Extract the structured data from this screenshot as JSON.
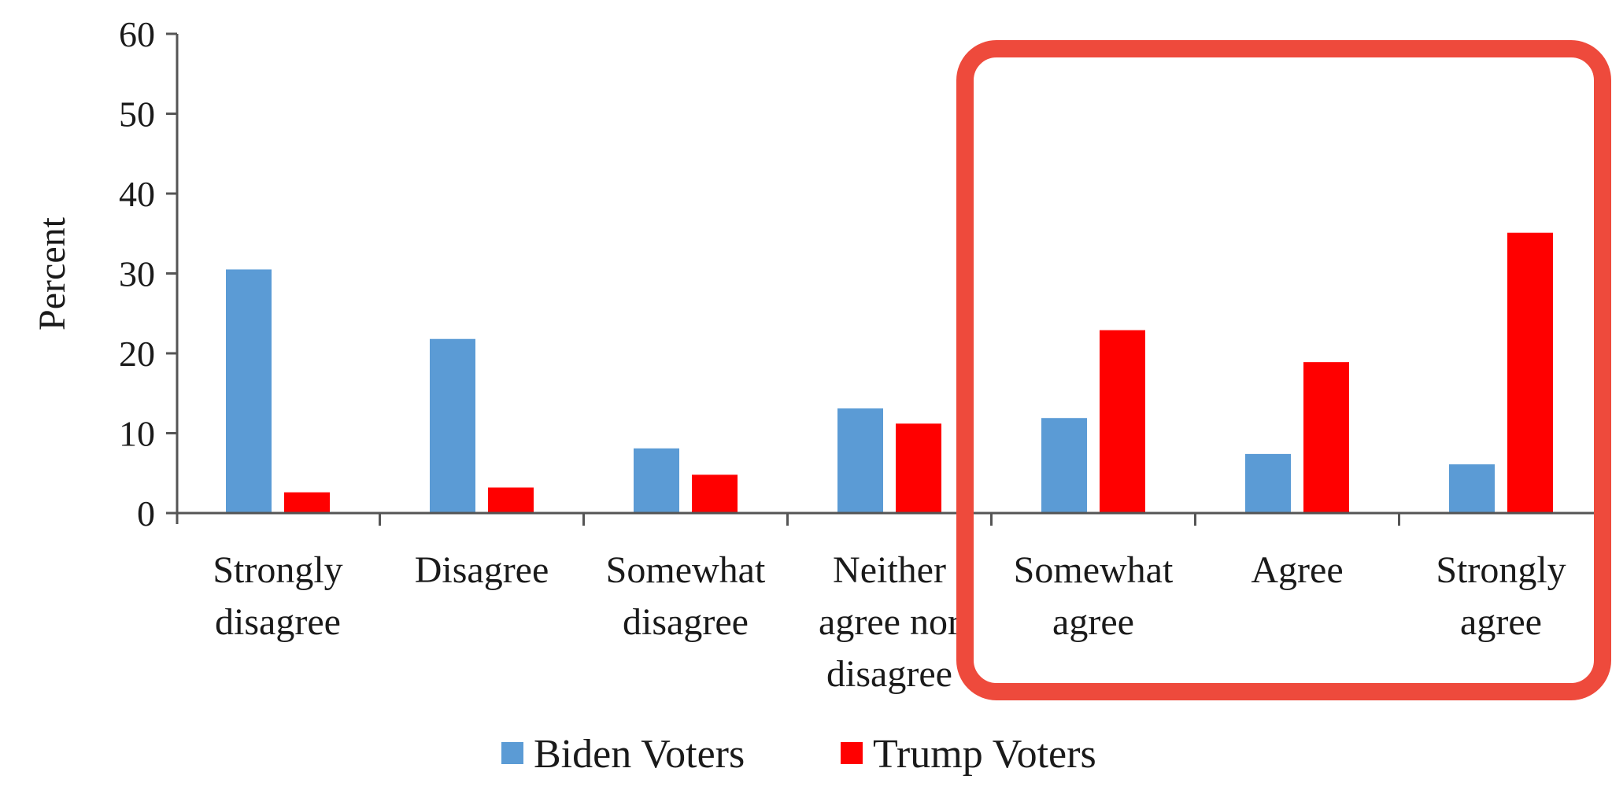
{
  "chart_data": {
    "type": "bar",
    "categories": [
      [
        "Strongly",
        "disagree"
      ],
      [
        "Disagree"
      ],
      [
        "Somewhat",
        "disagree"
      ],
      [
        "Neither",
        "agree nor",
        "disagree"
      ],
      [
        "Somewhat",
        "agree"
      ],
      [
        "Agree"
      ],
      [
        "Strongly",
        "agree"
      ]
    ],
    "series": [
      {
        "name": "Biden Voters",
        "color": "#5b9bd5",
        "values": [
          30.5,
          21.8,
          8.1,
          13.1,
          11.9,
          7.4,
          6.1
        ]
      },
      {
        "name": "Trump Voters",
        "color": "#ff0000",
        "values": [
          2.6,
          3.2,
          4.8,
          11.2,
          22.9,
          18.9,
          35.1
        ]
      }
    ],
    "ylabel": "Percent",
    "xlabel": "",
    "ylim": [
      0,
      60
    ],
    "yticks": [
      0,
      10,
      20,
      30,
      40,
      50,
      60
    ],
    "grid": false,
    "legend_position": "bottom",
    "highlight": {
      "categories": [
        "Somewhat agree",
        "Agree",
        "Strongly agree"
      ],
      "color": "#ee4a3c"
    }
  }
}
